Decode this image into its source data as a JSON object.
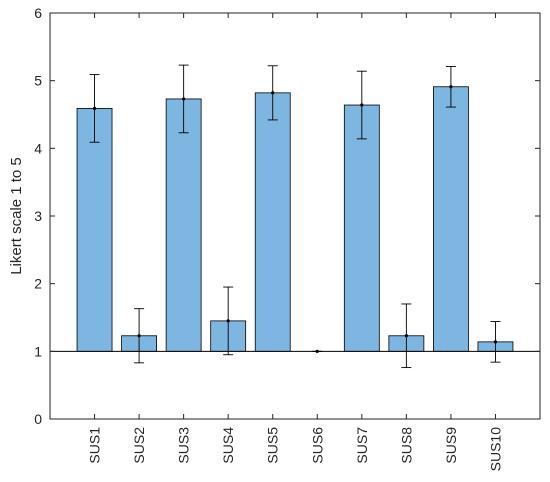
{
  "chart_data": {
    "type": "bar",
    "ylabel": "Likert scale 1 to 5",
    "ylim": [
      0,
      6
    ],
    "yticks": [
      0,
      1,
      2,
      3,
      4,
      5,
      6
    ],
    "baseline": 1,
    "categories": [
      "SUS1",
      "SUS2",
      "SUS3",
      "SUS4",
      "SUS5",
      "SUS6",
      "SUS7",
      "SUS8",
      "SUS9",
      "SUS10"
    ],
    "values": [
      4.59,
      1.23,
      4.73,
      1.45,
      4.82,
      1.0,
      4.64,
      1.23,
      4.91,
      1.14
    ],
    "error_bars": [
      [
        4.09,
        5.09
      ],
      [
        0.83,
        1.63
      ],
      [
        4.23,
        5.23
      ],
      [
        0.95,
        1.95
      ],
      [
        4.42,
        5.22
      ],
      [
        1.0,
        1.0
      ],
      [
        4.14,
        5.14
      ],
      [
        0.76,
        1.7
      ],
      [
        4.61,
        5.21
      ],
      [
        0.84,
        1.44
      ]
    ],
    "bar_color": "#7db6e0",
    "grid": false,
    "box": true
  }
}
